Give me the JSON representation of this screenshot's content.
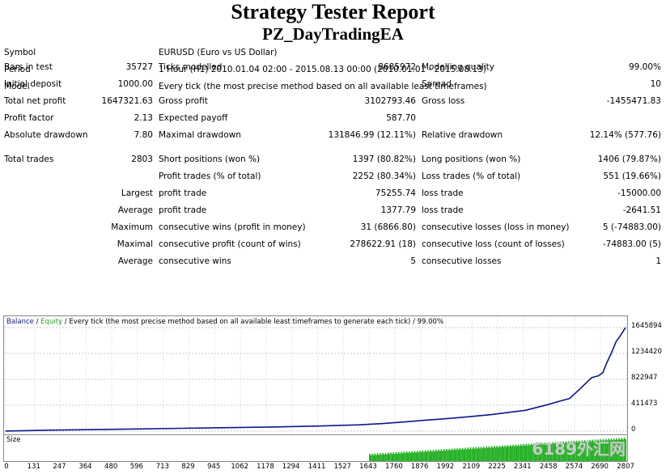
{
  "report": {
    "title": "Strategy Tester Report",
    "ea_name": "PZ_DayTradingEA"
  },
  "info": {
    "symbol_label": "Symbol",
    "symbol_value": "EURUSD (Euro vs US Dollar)",
    "period_label": "Period",
    "period_value": "1 Hour (H1) 2010.01.04 02:00 - 2015.08.13 00:00 (2010.01.01 - 2015.08.13)",
    "model_label": "Model",
    "model_value": "Every tick (the most precise method based on all available least timeframes)"
  },
  "stats": [
    {
      "l1": "Bars in test",
      "v1": "35727",
      "l2": "Ticks modelled",
      "v2": "8685972",
      "l3": "Modelling quality",
      "v3": "99.00%"
    },
    {
      "l1": "Initial deposit",
      "v1": "1000.00",
      "l2": "",
      "v2": "",
      "l3": "Spread",
      "v3": "10"
    },
    {
      "l1": "Total net profit",
      "v1": "1647321.63",
      "l2": "Gross profit",
      "v2": "3102793.46",
      "l3": "Gross loss",
      "v3": "-1455471.83"
    },
    {
      "l1": "Profit factor",
      "v1": "2.13",
      "l2": "Expected payoff",
      "v2": "587.70",
      "l3": "",
      "v3": ""
    },
    {
      "l1": "Absolute drawdown",
      "v1": "7.80",
      "l2": "Maximal drawdown",
      "v2": "131846.99 (12.11%)",
      "l3": "Relative drawdown",
      "v3": "12.14% (577.76)"
    },
    {
      "l1": "Total trades",
      "v1": "2803",
      "l2": "Short positions (won %)",
      "v2": "1397 (80.82%)",
      "l3": "Long positions (won %)",
      "v3": "1406 (79.87%)"
    },
    {
      "l1": "",
      "v1": "",
      "l2": "Profit trades (% of total)",
      "v2": "2252 (80.34%)",
      "l3": "Loss trades (% of total)",
      "v3": "551 (19.66%)"
    },
    {
      "l1": "",
      "v1": "Largest",
      "l2": "profit trade",
      "v2": "75255.74",
      "l3": "loss trade",
      "v3": "-15000.00"
    },
    {
      "l1": "",
      "v1": "Average",
      "l2": "profit trade",
      "v2": "1377.79",
      "l3": "loss trade",
      "v3": "-2641.51"
    },
    {
      "l1": "",
      "v1": "Maximum",
      "l2": "consecutive wins (profit in money)",
      "v2": "31 (6866.80)",
      "l3": "consecutive losses (loss in money)",
      "v3": "5 (-74883.00)"
    },
    {
      "l1": "",
      "v1": "Maximal",
      "l2": "consecutive profit (count of wins)",
      "v2": "278622.91 (18)",
      "l3": "consecutive loss (count of losses)",
      "v3": "-74883.00 (5)"
    },
    {
      "l1": "",
      "v1": "Average",
      "l2": "consecutive wins",
      "v2": "5",
      "l3": "consecutive losses",
      "v3": "1"
    }
  ],
  "chart_data": {
    "type": "line",
    "legend_balance": "Balance",
    "legend_sep1": " / ",
    "legend_equity": "Equity",
    "legend_rest": " / Every tick (the most precise method based on all available least timeframes to generate each tick) / 99.00%",
    "size_label": "Size",
    "grid": true,
    "colors": {
      "balance": "#0a1a8c",
      "equity": "#2a9d2a",
      "size": "#22b022"
    },
    "ylim": [
      0,
      1645894
    ],
    "y_ticks": [
      "1645894",
      "1234420",
      "822947",
      "411473",
      "0"
    ],
    "y_tick_values": [
      1645894,
      1234420,
      822947,
      411473,
      0
    ],
    "xlim": [
      0,
      2803
    ],
    "x_ticks": [
      "0",
      "131",
      "247",
      "364",
      "480",
      "596",
      "713",
      "829",
      "945",
      "1062",
      "1178",
      "1294",
      "1411",
      "1527",
      "1643",
      "1760",
      "1876",
      "1992",
      "2109",
      "2225",
      "2341",
      "2458",
      "2574",
      "2690",
      "2807"
    ],
    "x_tick_values": [
      0,
      131,
      247,
      364,
      480,
      596,
      713,
      829,
      945,
      1062,
      1178,
      1294,
      1411,
      1527,
      1643,
      1760,
      1876,
      1992,
      2109,
      2225,
      2341,
      2458,
      2574,
      2690,
      2807
    ],
    "series": [
      {
        "name": "Balance",
        "x": [
          0,
          200,
          400,
          600,
          800,
          1000,
          1200,
          1400,
          1600,
          1700,
          1800,
          1900,
          2000,
          2100,
          2200,
          2300,
          2350,
          2400,
          2450,
          2500,
          2550,
          2600,
          2620,
          2650,
          2680,
          2700,
          2720,
          2740,
          2760,
          2780,
          2803
        ],
        "y": [
          1000,
          15000,
          25000,
          35000,
          45000,
          55000,
          65000,
          80000,
          100000,
          120000,
          145000,
          175000,
          200000,
          230000,
          265000,
          310000,
          330000,
          375000,
          420000,
          470000,
          520000,
          680000,
          750000,
          850000,
          880000,
          930000,
          1100000,
          1250000,
          1420000,
          1520000,
          1647321
        ]
      }
    ],
    "size_start": 1643,
    "watermark": "6189外汇网"
  }
}
